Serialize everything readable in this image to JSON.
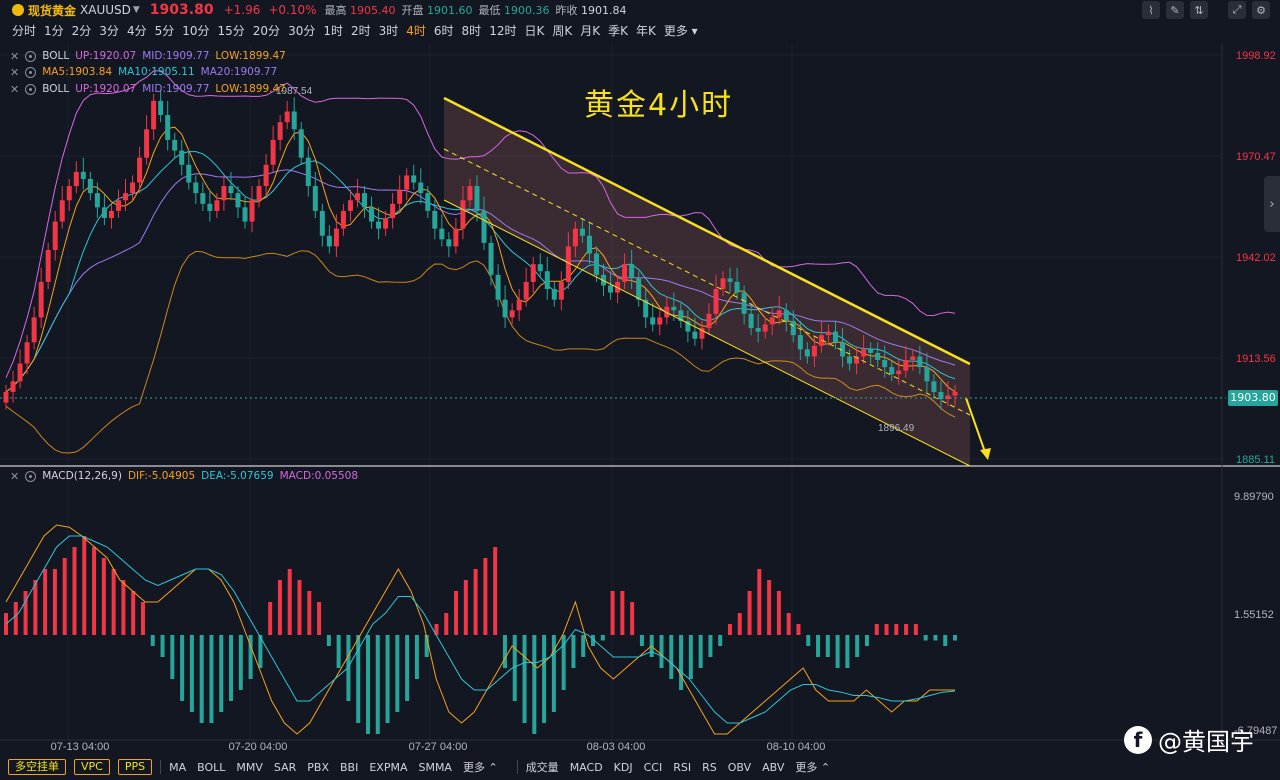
{
  "header": {
    "symbol_name": "现货黄金",
    "symbol_code": "XAUUSD",
    "price": "1903.80",
    "change": "+1.96",
    "change_pct": "+0.10%",
    "high_label": "最高",
    "high": "1905.40",
    "open_label": "开盘",
    "open": "1901.60",
    "low_label": "最低",
    "low": "1900.36",
    "prev_label": "昨收",
    "prev": "1901.84"
  },
  "toolbar_icons": [
    "chart-type-icon",
    "draw-icon",
    "compare-icon",
    "fullscreen-icon",
    "settings-icon"
  ],
  "periods": [
    {
      "label": "分时",
      "active": false
    },
    {
      "label": "1分",
      "active": false
    },
    {
      "label": "2分",
      "active": false
    },
    {
      "label": "3分",
      "active": false
    },
    {
      "label": "4分",
      "active": false
    },
    {
      "label": "5分",
      "active": false
    },
    {
      "label": "10分",
      "active": false
    },
    {
      "label": "15分",
      "active": false
    },
    {
      "label": "20分",
      "active": false
    },
    {
      "label": "30分",
      "active": false
    },
    {
      "label": "1时",
      "active": false
    },
    {
      "label": "2时",
      "active": false
    },
    {
      "label": "3时",
      "active": false
    },
    {
      "label": "4时",
      "active": true
    },
    {
      "label": "6时",
      "active": false
    },
    {
      "label": "8时",
      "active": false
    },
    {
      "label": "12时",
      "active": false
    },
    {
      "label": "日K",
      "active": false
    },
    {
      "label": "周K",
      "active": false
    },
    {
      "label": "月K",
      "active": false
    },
    {
      "label": "季K",
      "active": false
    },
    {
      "label": "年K",
      "active": false
    },
    {
      "label": "更多",
      "active": false
    }
  ],
  "indicators": {
    "boll1": {
      "name": "BOLL",
      "up": "UP:1920.07",
      "mid": "MID:1909.77",
      "low": "LOW:1899.47"
    },
    "ma": {
      "name": "",
      "ma5": "MA5:1903.84",
      "ma10": "MA10:1905.11",
      "ma20": "MA20:1909.77"
    },
    "boll2": {
      "name": "BOLL",
      "up": "UP:1920.07",
      "mid": "MID:1909.77",
      "low": "LOW:1899.47"
    },
    "macd": {
      "name": "MACD(12,26,9)",
      "dif": "DIF:-5.04905",
      "dea": "DEA:-5.07659",
      "macd": "MACD:0.05508"
    }
  },
  "annotations": {
    "title": "黄金4小时",
    "high_mark": "1987.54",
    "low_mark": "1896.49"
  },
  "price_axis": [
    "1998.92",
    "1970.47",
    "1942.02",
    "1913.56",
    "1885.11"
  ],
  "current_price_tag": "1903.80",
  "macd_axis": [
    "9.89790",
    "1.55152",
    "-6.79487"
  ],
  "time_axis": [
    "07-13 04:00",
    "07-20 04:00",
    "07-27 04:00",
    "08-03 04:00",
    "08-10 04:00"
  ],
  "colors": {
    "up": "#f23645",
    "down": "#26a69a",
    "accent": "#f7a21b",
    "channel": "#f7e01c",
    "boll": "#d668e0",
    "ma5": "#f7a21b",
    "ma10": "#2ec6d6",
    "ma20": "#9b7bf0"
  },
  "bottom_bar": {
    "buttons": [
      "多空挂单",
      "VPC",
      "PPS"
    ],
    "main_indicators": [
      "MA",
      "BOLL",
      "MMV",
      "SAR",
      "PBX",
      "BBI",
      "EXPMA",
      "SMMA"
    ],
    "more1": "更多",
    "sub_indicators": [
      "成交量",
      "MACD",
      "KDJ",
      "CCI",
      "RSI",
      "RS",
      "OBV",
      "ABV"
    ],
    "more2": "更多"
  },
  "watermark": "@黄国宇",
  "chart_data": {
    "type": "candlestick",
    "title": "黄金4小时",
    "ylim": [
      1885.11,
      1998.92
    ],
    "close_series": [
      1904,
      1907,
      1912,
      1918,
      1925,
      1935,
      1944,
      1952,
      1958,
      1962,
      1966,
      1964,
      1960,
      1956,
      1953,
      1955,
      1958,
      1960,
      1963,
      1970,
      1978,
      1986,
      1982,
      1975,
      1972,
      1968,
      1963,
      1960,
      1957,
      1955,
      1958,
      1962,
      1960,
      1956,
      1952,
      1958,
      1962,
      1968,
      1975,
      1980,
      1983,
      1978,
      1970,
      1962,
      1955,
      1948,
      1945,
      1950,
      1955,
      1958,
      1960,
      1956,
      1952,
      1950,
      1953,
      1957,
      1961,
      1965,
      1963,
      1960,
      1955,
      1950,
      1947,
      1945,
      1950,
      1958,
      1962,
      1955,
      1946,
      1937,
      1930,
      1925,
      1927,
      1930,
      1935,
      1940,
      1938,
      1933,
      1930,
      1935,
      1945,
      1950,
      1948,
      1943,
      1937,
      1934,
      1932,
      1935,
      1940,
      1936,
      1930,
      1925,
      1923,
      1925,
      1928,
      1927,
      1924,
      1921,
      1919,
      1922,
      1926,
      1933,
      1936,
      1935,
      1932,
      1926,
      1922,
      1921,
      1923,
      1925,
      1927,
      1924,
      1920,
      1916,
      1914,
      1917,
      1920,
      1921,
      1918,
      1914,
      1912,
      1914,
      1916,
      1915,
      1913,
      1911,
      1909,
      1910,
      1913,
      1914,
      1911,
      1907,
      1904,
      1902,
      1903,
      1904
    ],
    "macd_hist": [
      2,
      3,
      4,
      5,
      6,
      6,
      7,
      8,
      9,
      8,
      7,
      6,
      5,
      4,
      3,
      -1,
      -2,
      -4,
      -6,
      -7,
      -8,
      -8,
      -7,
      -6,
      -5,
      -4,
      -3,
      3,
      5,
      6,
      5,
      4,
      3,
      -1,
      -3,
      -6,
      -8,
      -9,
      -9,
      -8,
      -7,
      -6,
      -4,
      -2,
      1,
      2,
      4,
      5,
      6,
      7,
      8,
      -3,
      -6,
      -8,
      -9,
      -8,
      -7,
      -5,
      -3,
      -2,
      -1,
      -0.5,
      4,
      4,
      3,
      -1,
      -2,
      -3,
      -4,
      -5,
      -4,
      -3,
      -2,
      -1,
      1,
      2,
      4,
      6,
      5,
      4,
      2,
      1,
      -1,
      -2,
      -2,
      -3,
      -3,
      -2,
      -1,
      1,
      1,
      1,
      1,
      1,
      -0.5,
      -0.5,
      -1,
      -0.5
    ],
    "dif_series": [
      3,
      5,
      7,
      9,
      10,
      9.8,
      9,
      8,
      7,
      5,
      4,
      3,
      3,
      4,
      5,
      6,
      6,
      5,
      3,
      0,
      -3,
      -6,
      -8,
      -9,
      -8,
      -6,
      -4,
      -2,
      0,
      2,
      4,
      6,
      4,
      1,
      -4,
      -7,
      -8,
      -7,
      -5,
      -3,
      -1,
      -2,
      -3,
      -2,
      0,
      3,
      -1,
      -3,
      -4,
      -3,
      -2,
      -1,
      -2,
      -3,
      -5,
      -7,
      -9,
      -9,
      -8,
      -7,
      -6,
      -5,
      -4,
      -3,
      -5,
      -6,
      -6,
      -6,
      -5,
      -6,
      -7,
      -6,
      -6,
      -5,
      -5,
      -5
    ],
    "dea_series": [
      1,
      2,
      4,
      6,
      8,
      9,
      9,
      8.5,
      8,
      7,
      6,
      5,
      4.5,
      5,
      5.5,
      6,
      6,
      5.5,
      4,
      2,
      0,
      -2,
      -4,
      -6,
      -6,
      -5,
      -4,
      -3,
      -1,
      1,
      2,
      3.5,
      3.5,
      2,
      0,
      -2,
      -4,
      -5,
      -5,
      -4,
      -3,
      -2.5,
      -2.5,
      -2,
      -1,
      0.5,
      0,
      -1,
      -2,
      -2,
      -2,
      -1.5,
      -2,
      -3,
      -4,
      -5.5,
      -7,
      -8,
      -8,
      -7.5,
      -7,
      -6,
      -5,
      -4.5,
      -4.5,
      -5,
      -5.2,
      -5.5,
      -5.5,
      -5.7,
      -6,
      -6,
      -5.8,
      -5.5,
      -5.2,
      -5.1
    ]
  }
}
